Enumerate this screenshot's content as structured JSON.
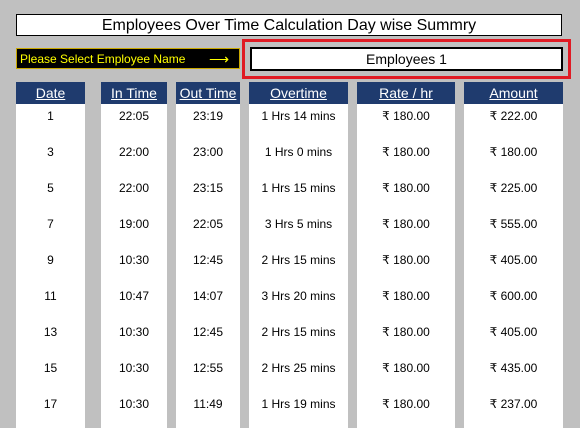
{
  "title": "Employees Over Time Calculation Day wise Summry",
  "select_label": "Please Select Employee Name",
  "arrow": "⟶",
  "employee": "Employees 1",
  "headers": {
    "date": "Date",
    "in_time": "In Time",
    "out_time": "Out Time",
    "overtime": "Overtime",
    "rate": "Rate / hr",
    "amount": "Amount"
  },
  "rows": [
    {
      "date": "1",
      "in_time": "22:05",
      "out_time": "23:19",
      "overtime": "1 Hrs 14 mins",
      "rate": "₹ 180.00",
      "amount": "₹ 222.00"
    },
    {
      "date": "3",
      "in_time": "22:00",
      "out_time": "23:00",
      "overtime": "1 Hrs 0 mins",
      "rate": "₹ 180.00",
      "amount": "₹ 180.00"
    },
    {
      "date": "5",
      "in_time": "22:00",
      "out_time": "23:15",
      "overtime": "1 Hrs 15 mins",
      "rate": "₹ 180.00",
      "amount": "₹ 225.00"
    },
    {
      "date": "7",
      "in_time": "19:00",
      "out_time": "22:05",
      "overtime": "3 Hrs 5 mins",
      "rate": "₹ 180.00",
      "amount": "₹ 555.00"
    },
    {
      "date": "9",
      "in_time": "10:30",
      "out_time": "12:45",
      "overtime": "2 Hrs 15 mins",
      "rate": "₹ 180.00",
      "amount": "₹ 405.00"
    },
    {
      "date": "11",
      "in_time": "10:47",
      "out_time": "14:07",
      "overtime": "3 Hrs 20 mins",
      "rate": "₹ 180.00",
      "amount": "₹ 600.00"
    },
    {
      "date": "13",
      "in_time": "10:30",
      "out_time": "12:45",
      "overtime": "2 Hrs 15 mins",
      "rate": "₹ 180.00",
      "amount": "₹ 405.00"
    },
    {
      "date": "15",
      "in_time": "10:30",
      "out_time": "12:55",
      "overtime": "2 Hrs 25 mins",
      "rate": "₹ 180.00",
      "amount": "₹ 435.00"
    },
    {
      "date": "17",
      "in_time": "10:30",
      "out_time": "11:49",
      "overtime": "1 Hrs 19 mins",
      "rate": "₹ 180.00",
      "amount": "₹ 237.00"
    }
  ]
}
